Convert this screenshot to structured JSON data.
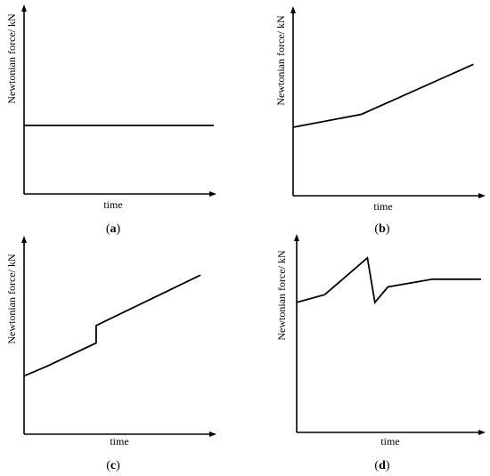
{
  "chart_data": [
    {
      "type": "line",
      "panel": "a",
      "caption": {
        "open": "(",
        "letter": "a",
        "close": ")"
      },
      "xlabel": "time",
      "ylabel": "Newtonian force/ kN",
      "xlim": [
        0,
        1
      ],
      "ylim": [
        0,
        1
      ],
      "grid": false,
      "x": [
        0,
        1
      ],
      "y": [
        0.37,
        0.37
      ]
    },
    {
      "type": "line",
      "panel": "b",
      "caption": {
        "open": "(",
        "letter": "b",
        "close": ")"
      },
      "xlabel": "time",
      "ylabel": "Newtonian force/ kN",
      "xlim": [
        0,
        1
      ],
      "ylim": [
        0,
        1
      ],
      "grid": false,
      "x": [
        0,
        0.36,
        0.95
      ],
      "y": [
        0.37,
        0.44,
        0.71
      ]
    },
    {
      "type": "line",
      "panel": "c",
      "caption": {
        "open": "(",
        "letter": "c",
        "close": ")"
      },
      "xlabel": "time",
      "ylabel": "Newtonian force/ kN",
      "xlim": [
        0,
        1
      ],
      "ylim": [
        0,
        1
      ],
      "grid": false,
      "x": [
        0,
        0.12,
        0.38,
        0.38,
        0.93
      ],
      "y": [
        0.3,
        0.35,
        0.47,
        0.56,
        0.82
      ]
    },
    {
      "type": "line",
      "panel": "d",
      "caption": {
        "open": "(",
        "letter": "d",
        "close": ")"
      },
      "xlabel": "time",
      "ylabel": "Newtonian force/ kN",
      "xlim": [
        0,
        1
      ],
      "ylim": [
        0,
        1
      ],
      "grid": false,
      "x": [
        0,
        0.15,
        0.38,
        0.42,
        0.49,
        0.73,
        0.99
      ],
      "y": [
        0.67,
        0.71,
        0.9,
        0.67,
        0.75,
        0.79,
        0.79
      ]
    }
  ]
}
